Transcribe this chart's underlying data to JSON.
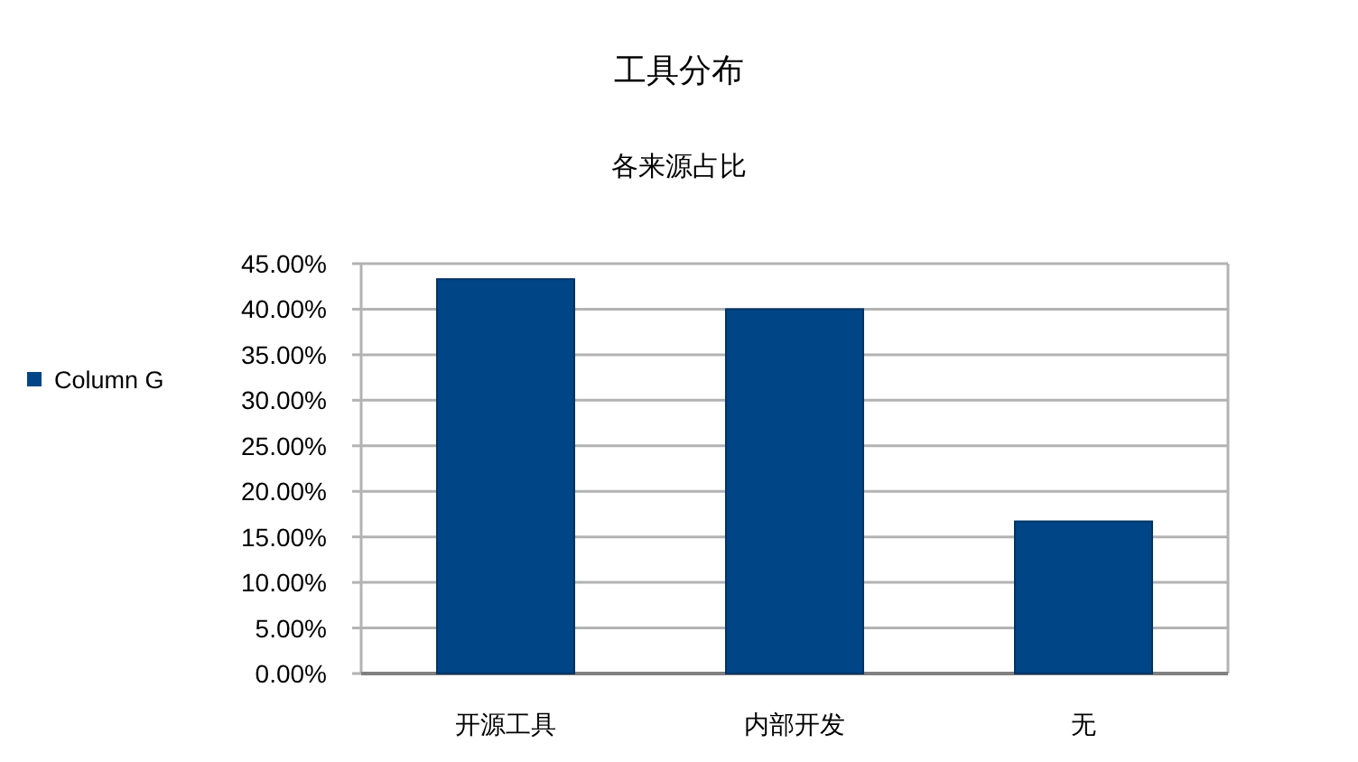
{
  "chart_data": {
    "type": "bar",
    "title": "工具分布",
    "subtitle": "各来源占比",
    "categories": [
      "开源工具",
      "内部开发",
      "无"
    ],
    "series": [
      {
        "name": "Column G",
        "color": "#004586",
        "values": [
          43.3,
          40.0,
          16.7
        ]
      }
    ],
    "ylim": [
      0,
      45
    ],
    "yticks": [
      {
        "value": 0,
        "label": "0.00%"
      },
      {
        "value": 5,
        "label": "5.00%"
      },
      {
        "value": 10,
        "label": "10.00%"
      },
      {
        "value": 15,
        "label": "15.00%"
      },
      {
        "value": 20,
        "label": "20.00%"
      },
      {
        "value": 25,
        "label": "25.00%"
      },
      {
        "value": 30,
        "label": "30.00%"
      },
      {
        "value": 35,
        "label": "35.00%"
      },
      {
        "value": 40,
        "label": "40.00%"
      },
      {
        "value": 45,
        "label": "45.00%"
      }
    ],
    "grid": "y",
    "legend": "left"
  }
}
